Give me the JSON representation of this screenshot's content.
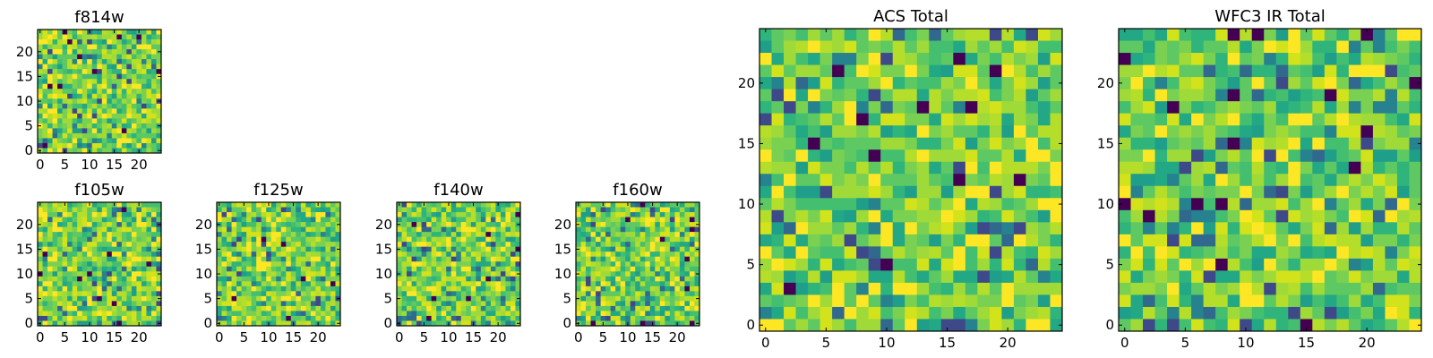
{
  "chart_data": [
    {
      "type": "heatmap",
      "title": "f814w",
      "grid_size": 25,
      "x_ticks": [
        0,
        5,
        10,
        15,
        20
      ],
      "y_ticks": [
        0,
        5,
        10,
        15,
        20
      ],
      "xlim": [
        0,
        24
      ],
      "ylim": [
        0,
        24
      ],
      "grid": false,
      "colormap": "viridis",
      "values": "randomized noise field"
    },
    {
      "type": "heatmap",
      "title": "f105w",
      "grid_size": 25,
      "x_ticks": [
        0,
        5,
        10,
        15,
        20
      ],
      "y_ticks": [
        0,
        5,
        10,
        15,
        20
      ],
      "xlim": [
        0,
        24
      ],
      "ylim": [
        0,
        24
      ],
      "grid": false,
      "colormap": "viridis",
      "values": "randomized noise field"
    },
    {
      "type": "heatmap",
      "title": "f125w",
      "grid_size": 25,
      "x_ticks": [
        0,
        5,
        10,
        15,
        20
      ],
      "y_ticks": [
        0,
        5,
        10,
        15,
        20
      ],
      "xlim": [
        0,
        24
      ],
      "ylim": [
        0,
        24
      ],
      "grid": false,
      "colormap": "viridis",
      "values": "randomized noise field"
    },
    {
      "type": "heatmap",
      "title": "f140w",
      "grid_size": 25,
      "x_ticks": [
        0,
        5,
        10,
        15,
        20
      ],
      "y_ticks": [
        0,
        5,
        10,
        15,
        20
      ],
      "xlim": [
        0,
        24
      ],
      "ylim": [
        0,
        24
      ],
      "grid": false,
      "colormap": "viridis",
      "values": "randomized noise field"
    },
    {
      "type": "heatmap",
      "title": "f160w",
      "grid_size": 25,
      "x_ticks": [
        0,
        5,
        10,
        15,
        20
      ],
      "y_ticks": [
        0,
        5,
        10,
        15,
        20
      ],
      "xlim": [
        0,
        24
      ],
      "ylim": [
        0,
        24
      ],
      "grid": false,
      "colormap": "viridis",
      "values": "randomized noise field"
    },
    {
      "type": "heatmap",
      "title": "ACS Total",
      "grid_size": 25,
      "x_ticks": [
        0,
        5,
        10,
        15,
        20
      ],
      "y_ticks": [
        0,
        5,
        10,
        15,
        20
      ],
      "xlim": [
        0,
        24
      ],
      "ylim": [
        0,
        24
      ],
      "grid": false,
      "colormap": "viridis",
      "values": "randomized noise field"
    },
    {
      "type": "heatmap",
      "title": "WFC3 IR Total",
      "grid_size": 25,
      "x_ticks": [
        0,
        5,
        10,
        15,
        20
      ],
      "y_ticks": [
        0,
        5,
        10,
        15,
        20
      ],
      "xlim": [
        0,
        24
      ],
      "ylim": [
        0,
        24
      ],
      "grid": false,
      "colormap": "viridis",
      "values": "randomized noise field"
    }
  ]
}
